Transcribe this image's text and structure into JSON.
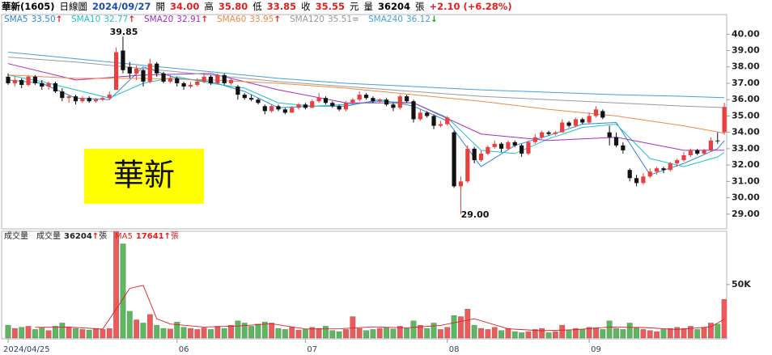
{
  "header": {
    "name": "華新(1605)",
    "period": "日線圖",
    "date": "2024/09/27",
    "open_label": "開",
    "open": "34.00",
    "high_label": "高",
    "high": "35.80",
    "low_label": "低",
    "low": "33.85",
    "close_label": "收",
    "close": "35.55",
    "currency": "元",
    "volume_label": "量",
    "volume": "36204",
    "volume_unit": "張",
    "change": "+2.10 (+6.28%)"
  },
  "chart_data": [
    {
      "type": "candlestick",
      "label": "華新",
      "ylim": [
        28.1,
        41.2
      ],
      "yticks": [
        {
          "value": 29,
          "label": "29.00"
        },
        {
          "value": 30,
          "label": "30.00"
        },
        {
          "value": 31,
          "label": "31.00"
        },
        {
          "value": 32,
          "label": "32.00"
        },
        {
          "value": 33,
          "label": "33.00"
        },
        {
          "value": 34,
          "label": "34.00"
        },
        {
          "value": 35,
          "label": "35.00"
        },
        {
          "value": 36,
          "label": "36.00"
        },
        {
          "value": 37,
          "label": "37.00"
        },
        {
          "value": 38,
          "label": "38.00"
        },
        {
          "value": 39,
          "label": "39.00"
        },
        {
          "value": 40,
          "label": "40.00"
        }
      ],
      "up_color": "#e8403f",
      "down_color": "#111111",
      "annotations": [
        "39.85",
        "29.00"
      ],
      "candles": [
        [
          37.4,
          37.6,
          36.9,
          37.0
        ],
        [
          37.0,
          37.4,
          36.8,
          37.2
        ],
        [
          37.2,
          37.3,
          36.7,
          36.9
        ],
        [
          36.9,
          37.5,
          36.8,
          37.4
        ],
        [
          37.4,
          37.5,
          36.9,
          37.0
        ],
        [
          37.0,
          37.2,
          36.6,
          36.8
        ],
        [
          36.8,
          37.1,
          36.6,
          37.0
        ],
        [
          37.0,
          37.1,
          36.4,
          36.5
        ],
        [
          36.5,
          36.7,
          35.9,
          36.1
        ],
        [
          36.1,
          36.3,
          35.8,
          36.2
        ],
        [
          36.2,
          36.3,
          35.7,
          35.9
        ],
        [
          35.9,
          36.2,
          35.8,
          36.1
        ],
        [
          36.1,
          36.2,
          35.8,
          35.9
        ],
        [
          35.9,
          36.1,
          35.8,
          36.0
        ],
        [
          36.0,
          36.2,
          35.9,
          36.1
        ],
        [
          36.1,
          36.5,
          36.0,
          36.3
        ],
        [
          36.6,
          39.2,
          36.6,
          38.9
        ],
        [
          39.0,
          39.85,
          37.6,
          37.8
        ],
        [
          38.0,
          38.3,
          37.3,
          37.6
        ],
        [
          37.6,
          38.1,
          37.2,
          37.9
        ],
        [
          37.8,
          37.9,
          36.8,
          37.1
        ],
        [
          37.1,
          38.5,
          37.0,
          38.2
        ],
        [
          38.2,
          38.3,
          37.4,
          37.6
        ],
        [
          37.6,
          37.7,
          37.0,
          37.1
        ],
        [
          37.1,
          37.5,
          37.0,
          37.3
        ],
        [
          37.3,
          37.4,
          36.8,
          37.0
        ],
        [
          37.0,
          37.1,
          36.6,
          36.8
        ],
        [
          36.8,
          37.1,
          36.7,
          36.9
        ],
        [
          36.9,
          37.3,
          36.8,
          37.1
        ],
        [
          37.1,
          37.6,
          37.0,
          37.4
        ],
        [
          37.4,
          37.5,
          36.9,
          37.0
        ],
        [
          37.0,
          37.6,
          37.0,
          37.5
        ],
        [
          37.5,
          37.6,
          36.9,
          37.0
        ],
        [
          37.0,
          37.3,
          36.9,
          37.2
        ],
        [
          36.8,
          36.9,
          36.0,
          36.3
        ],
        [
          36.3,
          36.4,
          36.0,
          36.1
        ],
        [
          36.1,
          36.3,
          35.9,
          36.0
        ],
        [
          36.0,
          36.1,
          35.7,
          35.8
        ],
        [
          35.6,
          35.7,
          35.1,
          35.3
        ],
        [
          35.3,
          35.7,
          35.2,
          35.6
        ],
        [
          35.6,
          35.7,
          35.3,
          35.4
        ],
        [
          35.4,
          35.5,
          35.1,
          35.2
        ],
        [
          35.2,
          35.6,
          35.2,
          35.5
        ],
        [
          35.5,
          35.8,
          35.4,
          35.7
        ],
        [
          35.7,
          35.8,
          35.4,
          35.5
        ],
        [
          35.5,
          36.0,
          35.5,
          35.9
        ],
        [
          35.9,
          36.4,
          35.8,
          36.1
        ],
        [
          36.1,
          36.2,
          35.7,
          35.8
        ],
        [
          35.8,
          35.9,
          35.5,
          35.6
        ],
        [
          35.6,
          35.7,
          35.3,
          35.4
        ],
        [
          35.4,
          35.9,
          35.3,
          35.8
        ],
        [
          35.8,
          36.1,
          35.7,
          36.0
        ],
        [
          36.0,
          36.5,
          35.9,
          36.3
        ],
        [
          36.3,
          36.4,
          36.0,
          36.1
        ],
        [
          36.1,
          36.2,
          35.8,
          35.9
        ],
        [
          35.9,
          36.1,
          35.8,
          36.0
        ],
        [
          36.0,
          36.1,
          35.6,
          35.7
        ],
        [
          35.7,
          35.8,
          35.3,
          35.5
        ],
        [
          35.5,
          36.3,
          35.4,
          36.2
        ],
        [
          36.2,
          36.3,
          35.8,
          35.9
        ],
        [
          35.9,
          36.0,
          34.6,
          34.8
        ],
        [
          34.8,
          35.4,
          34.7,
          35.2
        ],
        [
          35.2,
          35.3,
          34.9,
          35.0
        ],
        [
          35.0,
          35.1,
          34.2,
          34.4
        ],
        [
          34.4,
          34.7,
          34.3,
          34.5
        ],
        [
          34.5,
          35.0,
          34.4,
          34.9
        ],
        [
          34.0,
          34.1,
          30.6,
          30.7
        ],
        [
          30.7,
          31.3,
          29.0,
          31.0
        ],
        [
          31.0,
          33.2,
          30.9,
          33.0
        ],
        [
          33.0,
          33.1,
          32.1,
          32.3
        ],
        [
          32.3,
          32.9,
          32.2,
          32.7
        ],
        [
          32.7,
          33.2,
          32.6,
          33.1
        ],
        [
          33.1,
          33.5,
          33.0,
          33.3
        ],
        [
          33.3,
          33.4,
          32.8,
          33.0
        ],
        [
          33.0,
          33.5,
          32.9,
          33.4
        ],
        [
          33.4,
          33.5,
          33.1,
          33.2
        ],
        [
          33.2,
          33.3,
          32.5,
          32.7
        ],
        [
          32.7,
          33.5,
          32.6,
          33.4
        ],
        [
          33.4,
          33.9,
          33.3,
          33.7
        ],
        [
          33.7,
          34.1,
          33.6,
          34.0
        ],
        [
          34.0,
          34.1,
          33.8,
          33.9
        ],
        [
          33.9,
          34.1,
          33.8,
          34.0
        ],
        [
          34.0,
          34.8,
          34.0,
          34.6
        ],
        [
          34.6,
          34.7,
          34.3,
          34.4
        ],
        [
          34.4,
          34.9,
          34.3,
          34.8
        ],
        [
          34.8,
          34.9,
          34.5,
          34.6
        ],
        [
          34.6,
          35.2,
          34.5,
          35.0
        ],
        [
          35.0,
          35.6,
          34.9,
          35.4
        ],
        [
          35.3,
          35.4,
          34.8,
          34.9
        ],
        [
          34.0,
          34.4,
          33.2,
          33.7
        ],
        [
          33.7,
          34.0,
          33.1,
          33.2
        ],
        [
          33.2,
          33.4,
          32.7,
          32.9
        ],
        [
          31.7,
          31.8,
          31.0,
          31.2
        ],
        [
          31.2,
          31.4,
          30.7,
          30.9
        ],
        [
          30.9,
          31.5,
          30.8,
          31.3
        ],
        [
          31.3,
          31.8,
          31.2,
          31.6
        ],
        [
          31.6,
          31.9,
          31.4,
          31.8
        ],
        [
          31.8,
          31.9,
          31.5,
          31.7
        ],
        [
          31.7,
          32.2,
          31.6,
          32.1
        ],
        [
          32.1,
          32.4,
          31.9,
          32.3
        ],
        [
          32.3,
          32.8,
          32.2,
          32.6
        ],
        [
          32.6,
          33.0,
          32.5,
          32.9
        ],
        [
          32.9,
          33.0,
          32.6,
          32.7
        ],
        [
          32.7,
          33.0,
          32.6,
          32.9
        ],
        [
          32.9,
          33.7,
          32.8,
          33.5
        ],
        [
          33.5,
          34.0,
          33.3,
          33.45
        ],
        [
          34.0,
          35.8,
          33.85,
          35.55
        ]
      ],
      "series": [
        {
          "name": "SMA5",
          "color": "#2f86e0",
          "value_label": "33.50",
          "trend": "↑",
          "trend_color": "#e02020",
          "x": [
            0,
            5,
            10,
            15,
            20,
            25,
            30,
            35,
            40,
            45,
            50,
            55,
            60,
            65,
            70,
            75,
            80,
            85,
            90,
            95,
            100,
            105,
            106
          ],
          "values": [
            37.2,
            37.0,
            36.1,
            36.0,
            38.0,
            37.3,
            37.1,
            36.5,
            35.5,
            35.6,
            35.6,
            36.0,
            35.6,
            34.7,
            31.9,
            33.2,
            33.8,
            34.5,
            34.6,
            31.4,
            32.1,
            33.0,
            33.5
          ]
        },
        {
          "name": "SMA10",
          "color": "#1fc4c4",
          "value_label": "32.77",
          "trend": "↑",
          "trend_color": "#e02020",
          "x": [
            0,
            5,
            10,
            15,
            20,
            25,
            30,
            35,
            40,
            45,
            50,
            55,
            60,
            65,
            70,
            75,
            80,
            85,
            90,
            95,
            100,
            105,
            106
          ],
          "values": [
            37.5,
            37.1,
            36.6,
            36.1,
            37.0,
            37.4,
            37.0,
            36.7,
            35.8,
            35.6,
            35.7,
            35.9,
            35.8,
            34.9,
            32.9,
            32.7,
            33.6,
            34.3,
            34.5,
            32.4,
            31.9,
            32.5,
            32.77
          ]
        },
        {
          "name": "SMA20",
          "color": "#a62bc9",
          "value_label": "32.91",
          "trend": "↑",
          "trend_color": "#e02020",
          "x": [
            0,
            10,
            20,
            30,
            40,
            50,
            60,
            70,
            80,
            90,
            100,
            106
          ],
          "values": [
            38.2,
            37.2,
            37.5,
            37.6,
            36.6,
            35.8,
            35.8,
            33.9,
            33.5,
            33.7,
            32.9,
            32.91
          ]
        },
        {
          "name": "SMA60",
          "color": "#ef8848",
          "value_label": "33.95",
          "trend": "↑",
          "trend_color": "#e02020",
          "x": [
            0,
            10,
            20,
            30,
            40,
            50,
            60,
            70,
            80,
            90,
            100,
            106
          ],
          "values": [
            37.5,
            37.3,
            37.3,
            37.2,
            37.0,
            36.7,
            36.3,
            35.9,
            35.4,
            35.0,
            34.4,
            33.95
          ]
        },
        {
          "name": "SMA120",
          "color": "#9a9a9a",
          "value_label": "35.51",
          "trend": "=",
          "trend_color": "#9a9a9a",
          "x": [
            0,
            10,
            20,
            30,
            40,
            50,
            60,
            70,
            80,
            90,
            100,
            106
          ],
          "values": [
            38.6,
            38.3,
            37.9,
            37.5,
            37.1,
            36.8,
            36.5,
            36.2,
            36.0,
            35.8,
            35.6,
            35.51
          ]
        },
        {
          "name": "SMA240",
          "color": "#45a0dc",
          "value_label": "36.12",
          "trend": "↓",
          "trend_color": "#1f9a3a",
          "x": [
            0,
            10,
            20,
            30,
            40,
            50,
            60,
            70,
            80,
            90,
            100,
            106
          ],
          "values": [
            38.9,
            38.5,
            38.1,
            37.7,
            37.3,
            37.0,
            36.8,
            36.6,
            36.45,
            36.3,
            36.2,
            36.12
          ]
        }
      ]
    },
    {
      "type": "bar",
      "title": "成交量",
      "ylim": [
        0,
        99000
      ],
      "yticks": [
        {
          "value": 50000,
          "label": "50K"
        }
      ],
      "up_color": "#ee5a5a",
      "down_color": "#5cb85c",
      "xticks": [
        {
          "value": 0,
          "label": "2024/04/25"
        },
        {
          "value": 25,
          "label": "06"
        },
        {
          "value": 44,
          "label": "07"
        },
        {
          "value": 65,
          "label": "08"
        },
        {
          "value": 86,
          "label": "09"
        }
      ],
      "values": [
        12000,
        9000,
        10000,
        11000,
        8000,
        9500,
        7000,
        11000,
        14000,
        10000,
        9000,
        8000,
        7500,
        9000,
        8000,
        9000,
        102000,
        88000,
        25000,
        17000,
        14000,
        22000,
        12000,
        9000,
        8500,
        15000,
        10000,
        9000,
        8000,
        9500,
        8000,
        11000,
        9000,
        12000,
        16000,
        14000,
        11000,
        13000,
        15000,
        14000,
        9000,
        8000,
        10000,
        7500,
        8000,
        10000,
        9000,
        11000,
        7000,
        6000,
        8000,
        20000,
        9000,
        7000,
        8000,
        9000,
        10000,
        8500,
        11000,
        9000,
        16000,
        12000,
        9000,
        14000,
        8000,
        10000,
        21000,
        20000,
        27000,
        12000,
        9000,
        8000,
        10000,
        7000,
        9000,
        6000,
        5000,
        6000,
        8000,
        9000,
        5000,
        6000,
        12000,
        7000,
        9000,
        8000,
        10000,
        9500,
        8000,
        16000,
        9000,
        8000,
        14000,
        10000,
        8000,
        7000,
        6000,
        8000,
        9000,
        10000,
        9000,
        11000,
        8000,
        10000,
        14000,
        13000,
        36204
      ],
      "legend": [
        {
          "name": "成交量",
          "value_label": "36204",
          "trend": "↑",
          "unit": "張",
          "color": "#222222"
        }
      ],
      "series": [
        {
          "name": "MA5",
          "color": "#e02020",
          "value_label": "17641",
          "trend": "↑",
          "unit": "張",
          "x": [
            4,
            9,
            14,
            16,
            18,
            20,
            22,
            24,
            29,
            34,
            39,
            44,
            49,
            54,
            59,
            64,
            69,
            74,
            79,
            84,
            89,
            94,
            99,
            104,
            106
          ],
          "values": [
            10000,
            10300,
            8300,
            27100,
            46400,
            49200,
            18000,
            13100,
            10300,
            11200,
            13400,
            8500,
            8600,
            10400,
            9500,
            11800,
            18000,
            8600,
            6800,
            7800,
            10300,
            9800,
            8000,
            10400,
            17641
          ]
        }
      ]
    }
  ]
}
